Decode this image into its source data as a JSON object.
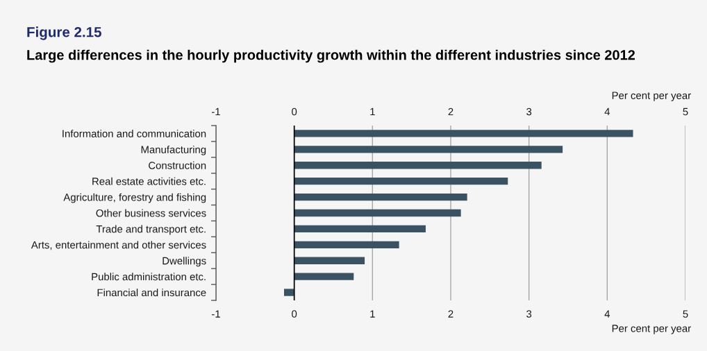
{
  "chart_data": {
    "type": "bar",
    "orientation": "horizontal",
    "title": "Figure 2.15",
    "subtitle": "Large differences in the hourly productivity growth within the different industries since 2012",
    "xlabel": "Per cent per year",
    "x2label": "Per cent per year",
    "categories": [
      "Information and communication",
      "Manufacturing",
      "Construction",
      "Real estate activities etc.",
      "Agriculture, forestry and fishing",
      "Other business services",
      "Trade and transport etc.",
      "Arts, entertainment and other services",
      "Dwellings",
      "Public administration etc.",
      "Financial and insurance"
    ],
    "values": [
      4.33,
      3.43,
      3.16,
      2.73,
      2.21,
      2.13,
      1.68,
      1.34,
      0.9,
      0.76,
      -0.13
    ],
    "color": "#3b5262",
    "xlim": [
      -1,
      5
    ],
    "xticks": [
      -1,
      0,
      1,
      2,
      3,
      4,
      5
    ],
    "x2lim": [
      -1,
      5
    ],
    "x2ticks": [
      -1,
      0,
      1,
      2,
      3,
      4,
      5
    ],
    "grid": "x",
    "ref_lines": [
      {
        "axis": "x",
        "value": 0,
        "color": "#000000"
      }
    ]
  }
}
